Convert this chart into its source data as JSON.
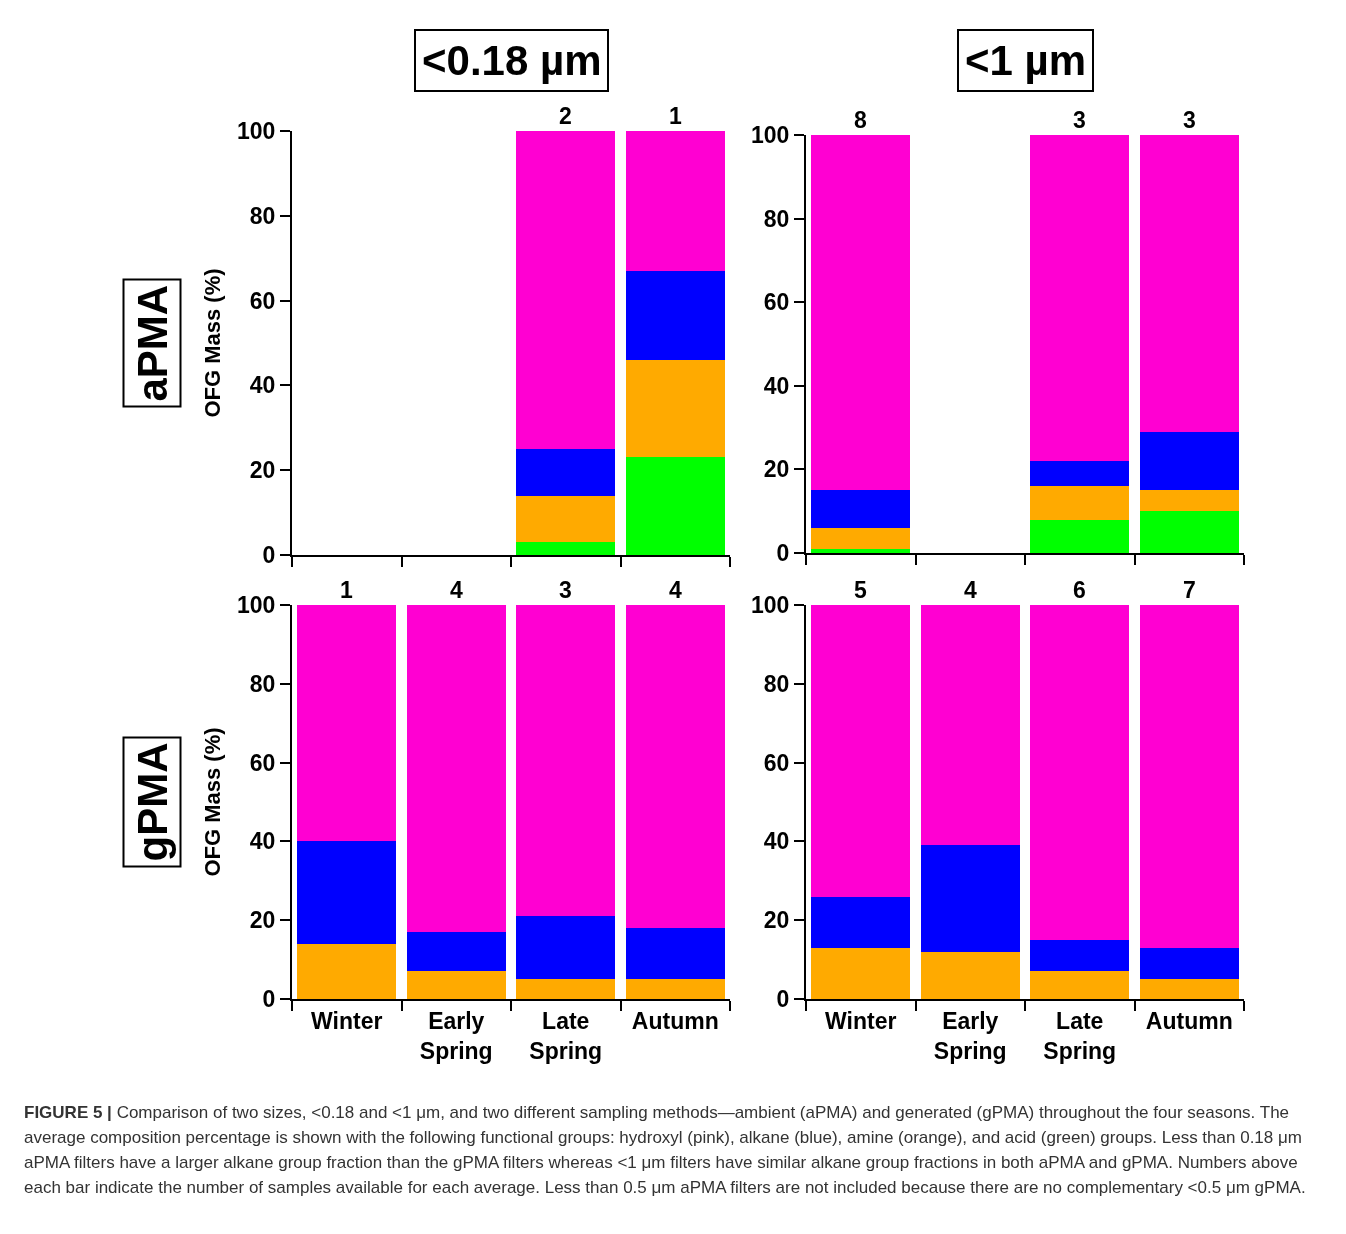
{
  "chart_data": [
    {
      "type": "bar",
      "stacked": true,
      "title": "<0.18 µm",
      "ylabel": "OFG Mass (%)",
      "categories": [
        "Winter",
        "Early Spring",
        "Late Spring",
        "Autumn"
      ],
      "ylim": [
        0,
        100
      ],
      "yticks": [
        0,
        20,
        40,
        60,
        80,
        100
      ],
      "tick_labels": "y",
      "series": [
        {
          "color": "#00ff00",
          "values": [
            null,
            null,
            3,
            23
          ]
        },
        {
          "color": "#ffaa00",
          "values": [
            null,
            null,
            11,
            23
          ]
        },
        {
          "color": "#0000ff",
          "values": [
            null,
            null,
            11,
            21
          ]
        },
        {
          "color": "#ff00d2",
          "values": [
            null,
            null,
            75,
            33
          ]
        }
      ],
      "annotations": [
        "aPMA",
        {
          "text": "2",
          "x": "Late Spring",
          "y": 100
        },
        {
          "text": "1",
          "x": "Autumn",
          "y": 100
        }
      ]
    },
    {
      "type": "bar",
      "stacked": true,
      "title": "<1 µm",
      "categories": [
        "Winter",
        "Early Spring",
        "Late Spring",
        "Autumn"
      ],
      "ylim": [
        0,
        100
      ],
      "yticks": [
        0,
        20,
        40,
        60,
        80,
        100
      ],
      "tick_labels": "y",
      "series": [
        {
          "color": "#00ff00",
          "values": [
            1,
            null,
            8,
            10
          ]
        },
        {
          "color": "#ffaa00",
          "values": [
            5,
            null,
            8,
            5
          ]
        },
        {
          "color": "#0000ff",
          "values": [
            9,
            null,
            6,
            14
          ]
        },
        {
          "color": "#ff00d2",
          "values": [
            85,
            null,
            78,
            71
          ]
        }
      ],
      "annotations": [
        {
          "text": "8",
          "x": "Winter",
          "y": 100
        },
        {
          "text": "3",
          "x": "Late Spring",
          "y": 100
        },
        {
          "text": "3",
          "x": "Autumn",
          "y": 100
        }
      ]
    },
    {
      "type": "bar",
      "stacked": true,
      "ylabel": "OFG Mass (%)",
      "categories": [
        "Winter",
        "Early Spring",
        "Late Spring",
        "Autumn"
      ],
      "ylim": [
        0,
        100
      ],
      "yticks": [
        0,
        20,
        40,
        60,
        80,
        100
      ],
      "series": [
        {
          "color": "#ffaa00",
          "values": [
            14,
            7,
            5,
            5
          ]
        },
        {
          "color": "#0000ff",
          "values": [
            26,
            10,
            16,
            13
          ]
        },
        {
          "color": "#ff00d2",
          "values": [
            60,
            83,
            79,
            82
          ]
        }
      ],
      "annotations": [
        "gPMA",
        {
          "text": "1",
          "x": "Winter",
          "y": 100
        },
        {
          "text": "4",
          "x": "Early Spring",
          "y": 100
        },
        {
          "text": "3",
          "x": "Late Spring",
          "y": 100
        },
        {
          "text": "4",
          "x": "Autumn",
          "y": 100
        }
      ]
    },
    {
      "type": "bar",
      "stacked": true,
      "categories": [
        "Winter",
        "Early Spring",
        "Late Spring",
        "Autumn"
      ],
      "ylim": [
        0,
        100
      ],
      "yticks": [
        0,
        20,
        40,
        60,
        80,
        100
      ],
      "series": [
        {
          "color": "#ffaa00",
          "values": [
            13,
            12,
            7,
            5
          ]
        },
        {
          "color": "#0000ff",
          "values": [
            13,
            27,
            8,
            8
          ]
        },
        {
          "color": "#ff00d2",
          "values": [
            74,
            61,
            85,
            87
          ]
        }
      ],
      "annotations": [
        {
          "text": "5",
          "x": "Winter",
          "y": 100
        },
        {
          "text": "4",
          "x": "Early Spring",
          "y": 100
        },
        {
          "text": "6",
          "x": "Late Spring",
          "y": 100
        },
        {
          "text": "7",
          "x": "Autumn",
          "y": 100
        }
      ]
    },
    {
      "type": "other",
      "annotations": [
        "FIGURE 5 |",
        "Comparison of two sizes, <0.18 and <1 μm, and two different sampling methods—ambient (aPMA) and generated (gPMA) throughout the four seasons. The average composition percentage is shown with the following functional groups: hydroxyl (pink), alkane (blue), amine (orange), and acid (green) groups. Less than 0.18 μm aPMA filters have a larger alkane group fraction than the gPMA filters whereas <1 μm filters have similar alkane group fractions in both aPMA and gPMA. Numbers above each bar indicate the number of samples available for each average. Less than 0.5 μm aPMA filters are not included because there are no complementary <0.5 μm gPMA."
      ]
    }
  ]
}
